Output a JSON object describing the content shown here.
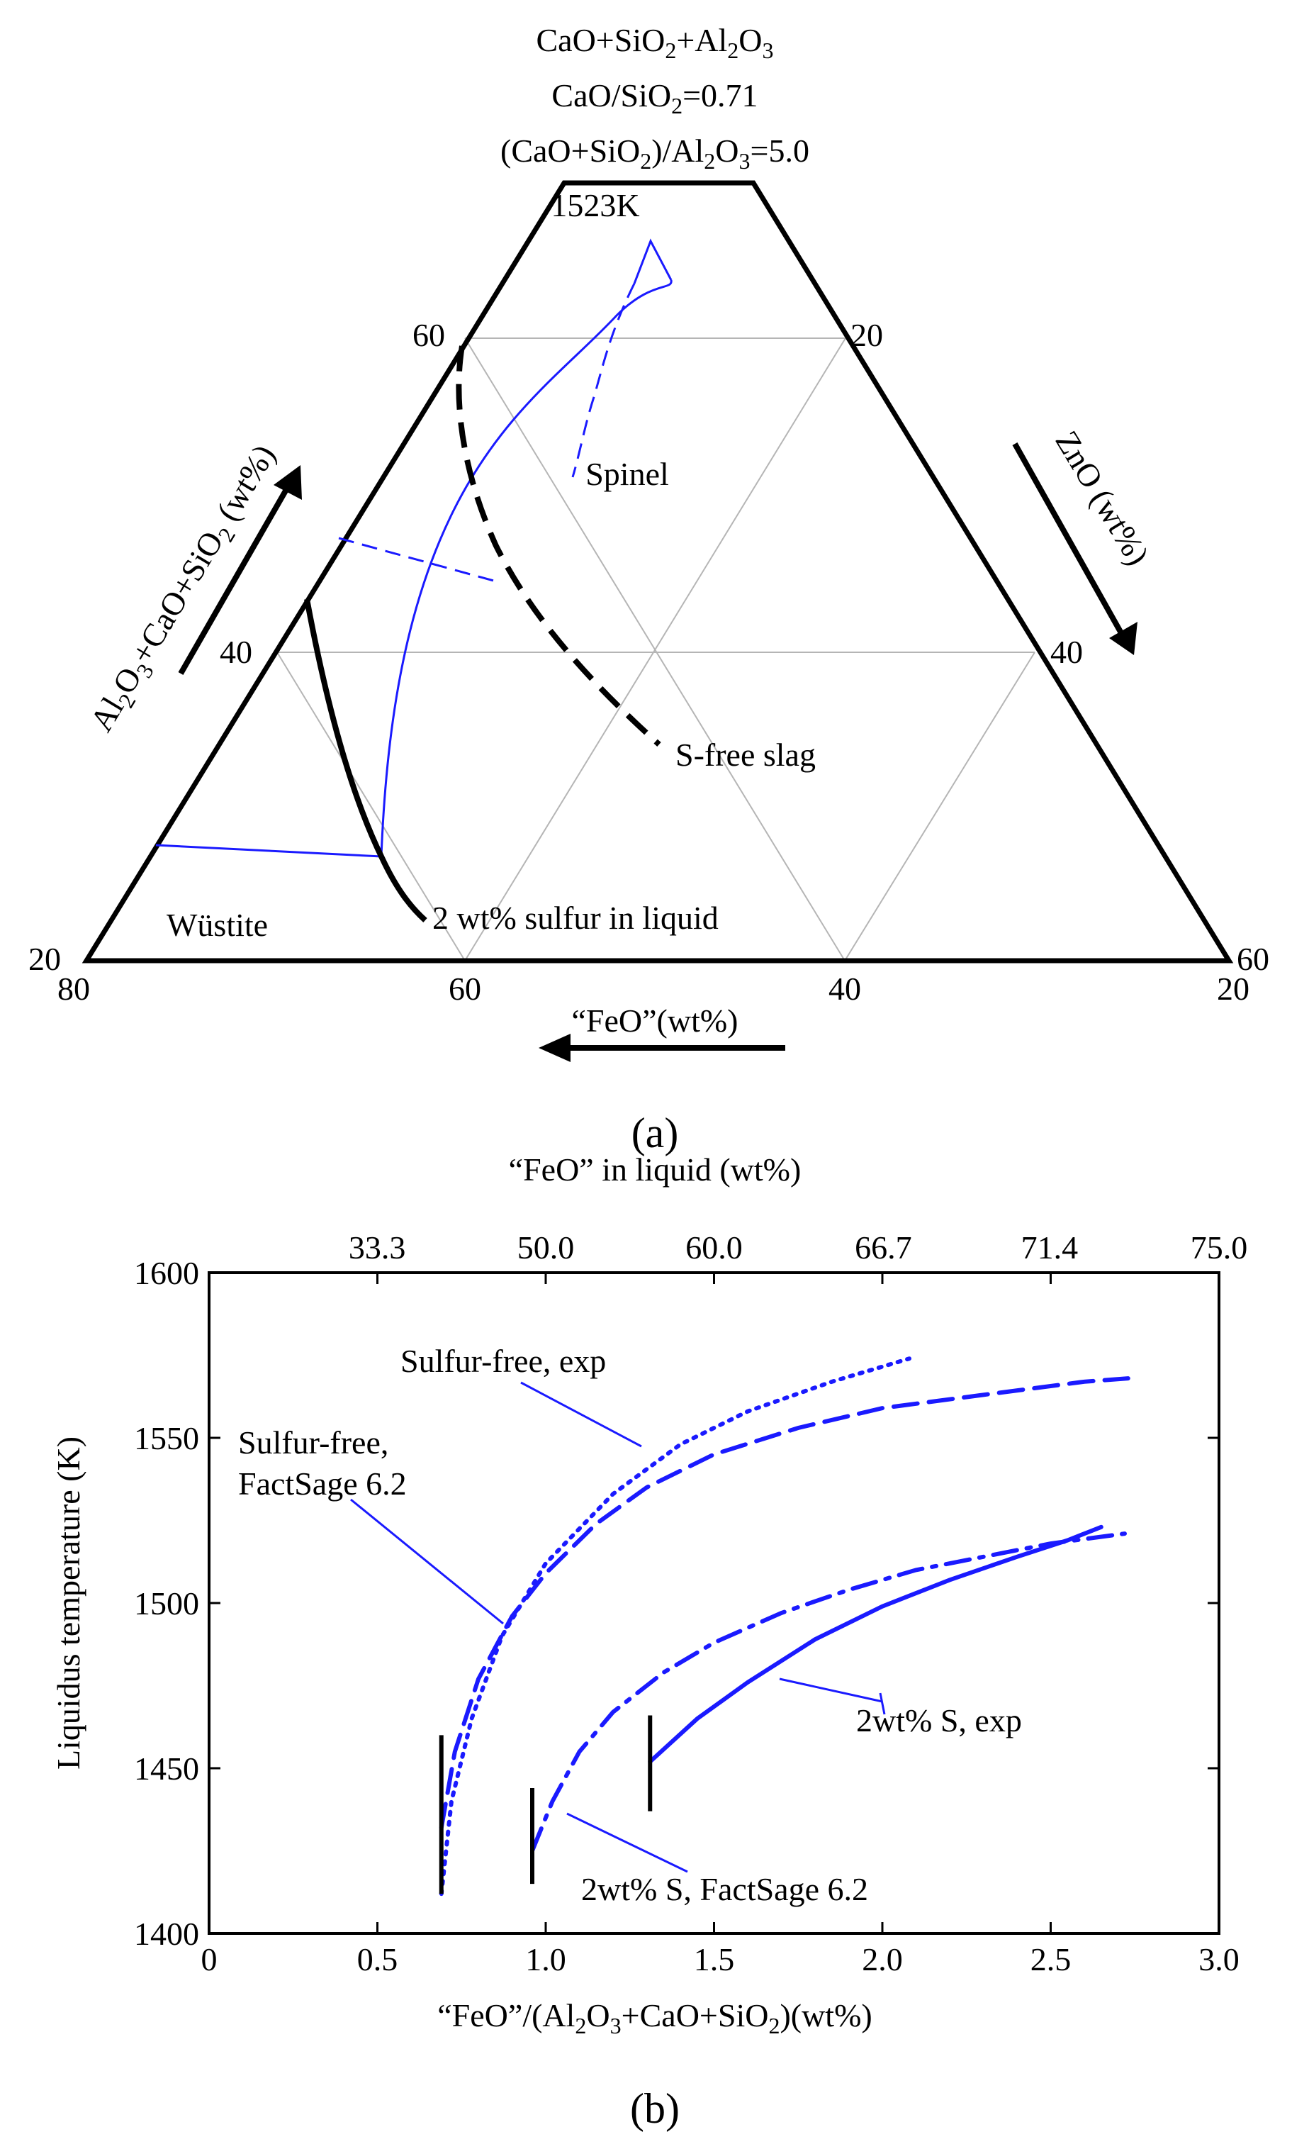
{
  "panel_a": {
    "title_lines": [
      "CaO+SiO",
      "2",
      "+Al",
      "2",
      "O",
      "3",
      "CaO/SiO",
      "2",
      "=0.71",
      "(CaO+SiO",
      "2",
      ")/Al",
      "2",
      "O",
      "3",
      "=5.0"
    ],
    "label": "(a)",
    "left_axis": [
      "Al",
      "2",
      "O",
      "3",
      "+CaO+SiO",
      "2",
      " (wt%)"
    ],
    "right_axis": "ZnO (wt%)",
    "bottom_axis": "“FeO”(wt%)",
    "temperature": "1523K",
    "region_spinel": "Spinel",
    "region_wustite": "Wüstite",
    "sfree": "S-free slag",
    "sulfur": "2 wt% sulfur in liquid",
    "ticks_left": [
      "60",
      "40",
      "20"
    ],
    "ticks_right": [
      "20",
      "40",
      "60"
    ],
    "ticks_bottom": [
      "80",
      "60",
      "40",
      "20"
    ]
  },
  "chart_data": {
    "type": "line",
    "title": "",
    "xlabel": "“FeO”/(Al2O3+CaO+SiO2)(wt%)",
    "ylabel": "Liquidus temperature (K)",
    "top_xlabel": "“FeO” in liquid (wt%)",
    "xlim": [
      0,
      3.0
    ],
    "ylim": [
      1400,
      1600
    ],
    "x_ticks": [
      "0",
      "0.5",
      "1.0",
      "1.5",
      "2.0",
      "2.5",
      "3.0"
    ],
    "y_ticks": [
      "1400",
      "1450",
      "1500",
      "1550",
      "1600"
    ],
    "top_ticks": [
      "33.3",
      "50.0",
      "60.0",
      "66.7",
      "71.4",
      "75.0"
    ],
    "series": [
      {
        "name": "Sulfur-free, exp",
        "style": "dotted",
        "x": [
          0.69,
          0.72,
          0.78,
          0.87,
          1.0,
          1.2,
          1.4,
          1.6,
          1.85,
          2.08
        ],
        "y": [
          1412,
          1440,
          1465,
          1490,
          1512,
          1533,
          1548,
          1558,
          1567,
          1574
        ]
      },
      {
        "name": "Sulfur-free, FactSage 6.2",
        "style": "dashed",
        "x": [
          0.69,
          0.73,
          0.8,
          0.9,
          1.0,
          1.15,
          1.3,
          1.5,
          1.75,
          2.0,
          2.3,
          2.6,
          2.73
        ],
        "y": [
          1432,
          1455,
          1477,
          1496,
          1509,
          1524,
          1535,
          1545,
          1553,
          1559,
          1563,
          1567,
          1568
        ]
      },
      {
        "name": "2wt% S, exp",
        "style": "solid",
        "x": [
          1.31,
          1.45,
          1.6,
          1.8,
          2.0,
          2.2,
          2.4,
          2.55,
          2.65
        ],
        "y": [
          1452,
          1465,
          1476,
          1489,
          1499,
          1507,
          1514,
          1519,
          1523
        ]
      },
      {
        "name": "2wt% S, FactSage 6.2",
        "style": "dashdot",
        "x": [
          0.96,
          1.02,
          1.1,
          1.2,
          1.35,
          1.5,
          1.7,
          1.9,
          2.1,
          2.3,
          2.5,
          2.72
        ],
        "y": [
          1425,
          1440,
          1455,
          1467,
          1479,
          1488,
          1497,
          1504,
          1510,
          1514,
          1518,
          1521
        ]
      }
    ],
    "markers_x": [
      0.69,
      0.96,
      1.31
    ],
    "labels": [
      "Sulfur-free, exp",
      "Sulfur-free,",
      "FactSage 6.2",
      "2wt% S, exp",
      "2wt% S, FactSage 6.2"
    ],
    "label": "(b)",
    "color": "#1a1aff"
  }
}
